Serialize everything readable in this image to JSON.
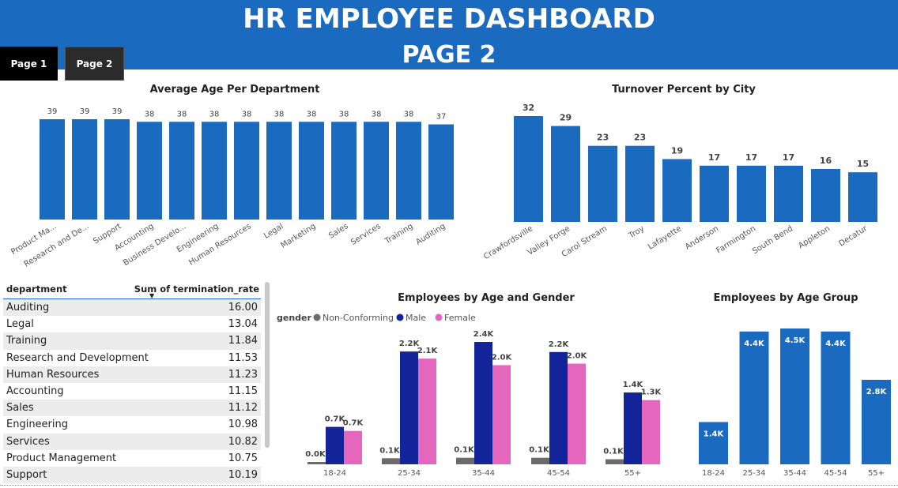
{
  "header": {
    "title": "HR EMPLOYEE DASHBOARD",
    "subtitle": "PAGE 2"
  },
  "nav": {
    "page1": "Page 1",
    "page2": "Page 2"
  },
  "colors": {
    "header": "#1a6bbf",
    "bar": "#1a6bbf",
    "male": "#13239a",
    "female": "#e467bd",
    "nonconforming": "#6b6b6b"
  },
  "table": {
    "col1": "department",
    "col2": "Sum of termination_rate",
    "rows": [
      [
        "Auditing",
        "16.00"
      ],
      [
        "Legal",
        "13.04"
      ],
      [
        "Training",
        "11.84"
      ],
      [
        "Research and Development",
        "11.53"
      ],
      [
        "Human Resources",
        "11.23"
      ],
      [
        "Accounting",
        "11.15"
      ],
      [
        "Sales",
        "11.12"
      ],
      [
        "Engineering",
        "10.98"
      ],
      [
        "Services",
        "10.82"
      ],
      [
        "Product Management",
        "10.75"
      ],
      [
        "Support",
        "10.19"
      ]
    ]
  },
  "chart_data": [
    {
      "type": "bar",
      "title": "Average Age Per Department",
      "categories": [
        "Product Ma...",
        "Research and De...",
        "Support",
        "Accounting",
        "Business Develo...",
        "Engineering",
        "Human Resources",
        "Legal",
        "Marketing",
        "Sales",
        "Services",
        "Training",
        "Auditing"
      ],
      "values": [
        39,
        39,
        39,
        38,
        38,
        38,
        38,
        38,
        38,
        38,
        38,
        38,
        37
      ]
    },
    {
      "type": "bar",
      "title": "Turnover Percent by City",
      "categories": [
        "Crawfordsville",
        "Valley Forge",
        "Carol Stream",
        "Troy",
        "Lafayette",
        "Anderson",
        "Farmington",
        "South Bend",
        "Appleton",
        "Decatur"
      ],
      "values": [
        32,
        29,
        23,
        23,
        19,
        17,
        17,
        17,
        16,
        15
      ]
    },
    {
      "type": "bar",
      "title": "Employees by Age and Gender",
      "legend_title": "gender",
      "categories": [
        "18-24",
        "25-34",
        "35-44",
        "45-54",
        "55+"
      ],
      "series": [
        {
          "name": "Non-Conforming",
          "values": [
            20,
            120,
            130,
            130,
            100
          ],
          "labels": [
            "0.0K",
            "0.1K",
            "0.1K",
            "0.1K",
            "0.1K"
          ]
        },
        {
          "name": "Male",
          "values": [
            740,
            2230,
            2420,
            2220,
            1420
          ],
          "labels": [
            "0.7K",
            "2.2K",
            "2.4K",
            "2.2K",
            "1.4K"
          ]
        },
        {
          "name": "Female",
          "values": [
            660,
            2090,
            1960,
            1990,
            1270
          ],
          "labels": [
            "0.7K",
            "2.1K",
            "2.0K",
            "2.0K",
            "1.3K"
          ]
        }
      ]
    },
    {
      "type": "bar",
      "title": "Employees by Age Group",
      "categories": [
        "18-24",
        "25-34",
        "35-44",
        "45-54",
        "55+"
      ],
      "values": [
        1400,
        4400,
        4500,
        4400,
        2800
      ],
      "labels": [
        "1.4K",
        "4.4K",
        "4.5K",
        "4.4K",
        "2.8K"
      ]
    }
  ]
}
